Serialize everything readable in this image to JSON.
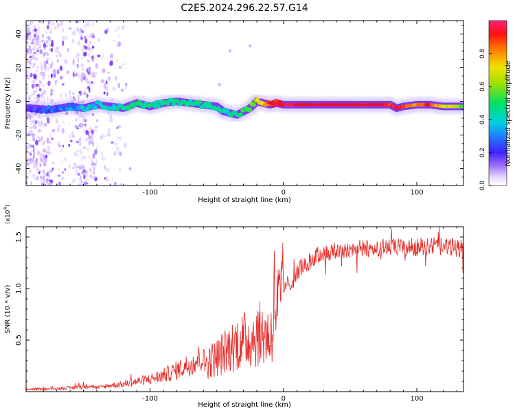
{
  "title": "C2E5.2024.296.22.57.G14",
  "colors": {
    "snr_line": "#e8302c",
    "spectrogram_low": "#8a2be2",
    "spectrogram_mid": "#00e0a0",
    "spectrogram_high": "#e0102a"
  },
  "chart_data": [
    {
      "type": "heatmap",
      "title": "C2E5.2024.296.22.57.G14",
      "xlabel": "Height of straight line (km)",
      "ylabel": "Frequency (Hz)",
      "xlim": [
        -193,
        135
      ],
      "ylim": [
        -50,
        48
      ],
      "xticks": [
        -100,
        0,
        100
      ],
      "yticks": [
        -40,
        -20,
        0,
        20,
        40
      ],
      "colorbar": {
        "label": "Normalized spectral amplitude",
        "range": [
          0,
          1
        ],
        "ticks": [
          "0.0",
          "0.2",
          "0.4",
          "0.6",
          "0.8"
        ]
      },
      "ridge": {
        "x": [
          -190,
          -175,
          -160,
          -150,
          -140,
          -130,
          -120,
          -110,
          -100,
          -90,
          -80,
          -70,
          -60,
          -50,
          -45,
          -40,
          -35,
          -30,
          -25,
          -20,
          -15,
          -10,
          -5,
          0,
          10,
          20,
          40,
          60,
          80,
          85,
          90,
          100,
          110,
          120,
          135
        ],
        "y": [
          -4,
          -5,
          -3,
          -4,
          -2,
          -3,
          -4,
          -1,
          -3,
          -1,
          0,
          -1,
          -2,
          -3,
          -6,
          -7,
          -8,
          -6,
          -4,
          0,
          -1,
          -2,
          -1,
          -2,
          -2,
          -2,
          -2,
          -2,
          -2,
          -4,
          -3,
          -2,
          -2,
          -3,
          -3
        ],
        "amplitude": [
          0.2,
          0.25,
          0.3,
          0.35,
          0.4,
          0.4,
          0.45,
          0.45,
          0.45,
          0.45,
          0.45,
          0.45,
          0.45,
          0.45,
          0.45,
          0.45,
          0.45,
          0.5,
          0.55,
          0.65,
          0.75,
          0.85,
          0.9,
          0.95,
          0.95,
          0.95,
          0.95,
          0.92,
          0.9,
          0.95,
          0.85,
          0.8,
          0.9,
          0.7,
          0.55
        ]
      }
    },
    {
      "type": "line",
      "xlabel": "Height of straight line (km)",
      "ylabel": "SNR (10 * v/v)",
      "y_multiplier": "(x10^4)",
      "xlim": [
        -193,
        135
      ],
      "ylim": [
        0,
        1.6
      ],
      "xticks": [
        -100,
        0,
        100
      ],
      "yticks": [
        0.5,
        1.0,
        1.5
      ],
      "series": [
        {
          "x": [
            -193,
            -180,
            -160,
            -150,
            -145,
            -140,
            -130,
            -120,
            -110,
            -100,
            -90,
            -80,
            -70,
            -60,
            -50,
            -45,
            -40,
            -35,
            -30,
            -25,
            -20,
            -15,
            -10,
            -8,
            -7,
            -5,
            -2,
            0,
            2,
            5,
            10,
            15,
            20,
            25,
            30,
            40,
            50,
            60,
            70,
            80,
            90,
            100,
            110,
            120,
            130,
            135
          ],
          "y": [
            0.02,
            0.02,
            0.03,
            0.04,
            0.05,
            0.03,
            0.05,
            0.06,
            0.08,
            0.1,
            0.13,
            0.17,
            0.22,
            0.28,
            0.35,
            0.4,
            0.45,
            0.5,
            0.52,
            0.55,
            0.58,
            0.6,
            0.55,
            0.7,
            1.0,
            0.85,
            0.9,
            1.0,
            1.05,
            1.1,
            1.2,
            1.25,
            1.3,
            1.35,
            1.38,
            1.4,
            1.42,
            1.42,
            1.43,
            1.44,
            1.43,
            1.44,
            1.45,
            1.44,
            1.43,
            1.44
          ]
        }
      ]
    }
  ]
}
